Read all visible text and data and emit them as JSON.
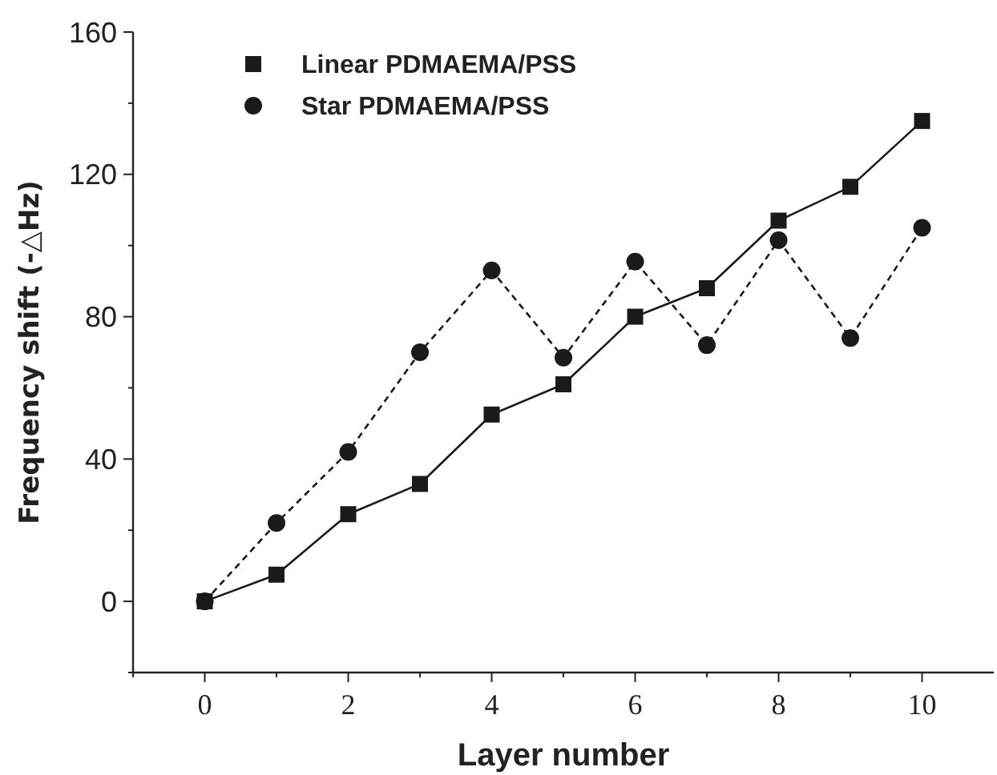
{
  "chart_data": {
    "type": "line",
    "xlabel": "Layer number",
    "ylabel": "Frequency shift (-△Hz)",
    "x": [
      0,
      1,
      2,
      3,
      4,
      5,
      6,
      7,
      8,
      9,
      10
    ],
    "series": [
      {
        "name": "Linear PDMAEMA/PSS",
        "color": "#1a1a1a",
        "values": [
          0,
          7.5,
          24.5,
          33,
          52.5,
          61,
          80,
          88,
          107,
          116.5,
          135
        ],
        "marker": "square",
        "line_style": "solid"
      },
      {
        "name": "Star PDMAEMA/PSS",
        "color": "#1a1a1a",
        "values": [
          0,
          22,
          42,
          70,
          93,
          68.5,
          95.5,
          72,
          101.5,
          74,
          105
        ],
        "marker": "circle",
        "line_style": "dashed"
      }
    ],
    "xlim": [
      -1,
      11
    ],
    "xticks": [
      {
        "value": -1,
        "label": null
      },
      0,
      {
        "value": 1,
        "label": null
      },
      2,
      {
        "value": 3,
        "label": null
      },
      4,
      {
        "value": 5,
        "label": null
      },
      6,
      {
        "value": 7,
        "label": null
      },
      8,
      {
        "value": 9,
        "label": null
      },
      10
    ],
    "ylim": [
      -20,
      160
    ],
    "yticks": [
      {
        "value": -20,
        "label": null
      },
      0,
      {
        "value": 20,
        "label": null
      },
      40,
      {
        "value": 60,
        "label": null
      },
      80,
      {
        "value": 100,
        "label": null
      },
      120,
      {
        "value": 140,
        "label": null
      },
      160
    ],
    "grid": false,
    "legend": "top left"
  }
}
